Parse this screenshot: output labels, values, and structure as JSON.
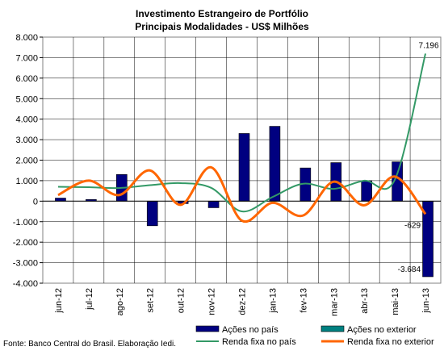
{
  "chart_data": {
    "type": "bar",
    "title": "Investimento Estrangeiro de Portfólio",
    "subtitle": "Principais Modalidades - US$ Milhões",
    "categories": [
      "jun-12",
      "jul-12",
      "ago-12",
      "set-12",
      "out-12",
      "nov-12",
      "dez-12",
      "jan-13",
      "fev-13",
      "mar-13",
      "abr-13",
      "mai-13",
      "jun-13"
    ],
    "ylim": [
      -4000,
      8000
    ],
    "yticks": [
      8000,
      7000,
      6000,
      5000,
      4000,
      3000,
      2000,
      1000,
      0,
      -1000,
      -2000,
      -3000,
      -4000
    ],
    "ytick_labels": [
      "8.000",
      "7.000",
      "6.000",
      "5.000",
      "4.000",
      "3.000",
      "2.000",
      "1.000",
      "0",
      "-1.000",
      "-2.000",
      "-3.000",
      "-4.000"
    ],
    "grid": true,
    "legend_position": "bottom-right",
    "series": [
      {
        "name": "Ações no país",
        "type": "bar",
        "color": "#000080",
        "values": [
          150,
          80,
          1300,
          -1200,
          -120,
          -320,
          3300,
          3650,
          1620,
          1880,
          1000,
          1920,
          -3684
        ]
      },
      {
        "name": "Ações no exterior",
        "type": "bar",
        "color": "#008080",
        "values": [
          0,
          0,
          0,
          0,
          0,
          0,
          0,
          0,
          0,
          0,
          0,
          0,
          0
        ]
      },
      {
        "name": "Renda fixa no país",
        "type": "line",
        "color": "#339966",
        "values": [
          700,
          680,
          640,
          780,
          880,
          650,
          -500,
          200,
          850,
          600,
          1000,
          1050,
          7196
        ]
      },
      {
        "name": "Renda fixa no exterior",
        "type": "line",
        "color": "#FF6600",
        "values": [
          300,
          1000,
          300,
          1500,
          -180,
          1650,
          -950,
          -80,
          -700,
          950,
          -200,
          1200,
          -629
        ]
      }
    ],
    "data_labels": [
      {
        "series": "Renda fixa no país",
        "index": 12,
        "text": "7.196"
      },
      {
        "series": "Renda fixa no exterior",
        "index": 12,
        "text": "-629"
      },
      {
        "series": "Ações no país",
        "index": 12,
        "text": "-3.684"
      }
    ]
  },
  "source": "Fonte: Banco Central do Brasil. Elaboração Iedi."
}
